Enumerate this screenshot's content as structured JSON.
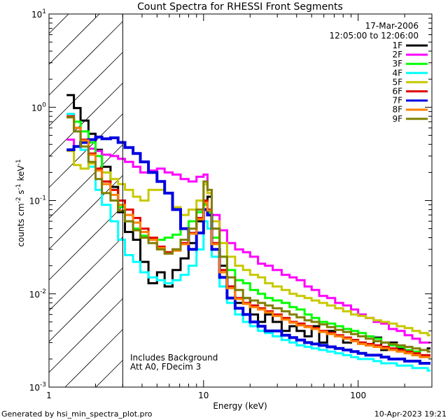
{
  "chart_data": {
    "type": "line",
    "title": "Count Spectra for RHESSI Front Segments",
    "xlabel": "Energy (keV)",
    "ylabel_parts": [
      "counts cm",
      "-2",
      " s",
      "-1",
      " keV",
      "-1"
    ],
    "x_scale": "log",
    "y_scale": "log",
    "xlim": [
      1,
      300
    ],
    "ylim": [
      0.001,
      10
    ],
    "x_tick_labels": [
      {
        "value": 1,
        "label": "1"
      },
      {
        "value": 10,
        "label": "10"
      },
      {
        "value": 100,
        "label": "100"
      }
    ],
    "y_tick_labels": [
      {
        "value": 10,
        "base": "10",
        "exp": "1"
      },
      {
        "value": 1,
        "base": "10",
        "exp": "0"
      },
      {
        "value": 0.1,
        "base": "10",
        "exp": "-1"
      },
      {
        "value": 0.01,
        "base": "10",
        "exp": "-2"
      },
      {
        "value": 0.001,
        "base": "10",
        "exp": "-3"
      }
    ],
    "excluded_region_keV": [
      1,
      3
    ],
    "date": "17-Mar-2006",
    "time_range": "12:05:00 to 12:06:00",
    "notes": [
      "Includes Background",
      "Att A0, FDecim 3"
    ],
    "series": [
      {
        "name": "1F",
        "color": "#000000",
        "width": 3,
        "x": [
          1.3,
          1.45,
          1.6,
          1.8,
          2.0,
          2.2,
          2.5,
          2.8,
          3.1,
          3.5,
          3.9,
          4.4,
          5.0,
          5.6,
          6.3,
          7.1,
          8.0,
          9.0,
          10.0,
          10.6,
          11.3,
          12.7,
          14.2,
          16,
          18,
          20,
          22.5,
          25,
          28,
          32,
          36,
          40,
          45,
          50,
          56,
          63,
          71,
          80,
          90,
          100,
          112,
          126,
          141,
          158,
          178,
          200,
          224,
          251,
          282
        ],
        "y": [
          1.35,
          0.98,
          0.72,
          0.52,
          0.35,
          0.23,
          0.14,
          0.075,
          0.046,
          0.038,
          0.022,
          0.013,
          0.017,
          0.012,
          0.018,
          0.024,
          0.035,
          0.06,
          0.1,
          0.11,
          0.05,
          0.02,
          0.012,
          0.008,
          0.009,
          0.006,
          0.005,
          0.006,
          0.005,
          0.004,
          0.0045,
          0.004,
          0.0035,
          0.0045,
          0.003,
          0.004,
          0.0035,
          0.003,
          0.0032,
          0.003,
          0.0028,
          0.0034,
          0.0025,
          0.003,
          0.0026,
          0.0024,
          0.0022,
          0.0025,
          0.0026
        ]
      },
      {
        "name": "2F",
        "color": "#ff00ff",
        "width": 3,
        "x": [
          1.3,
          1.45,
          1.6,
          1.8,
          2.0,
          2.2,
          2.5,
          2.8,
          3.1,
          3.5,
          3.9,
          4.4,
          5.0,
          5.6,
          6.3,
          7.1,
          8.0,
          9.0,
          10.0,
          10.6,
          11.3,
          12.7,
          14.2,
          16,
          18,
          20,
          22.5,
          25,
          28,
          32,
          36,
          40,
          45,
          50,
          56,
          63,
          71,
          80,
          90,
          100,
          112,
          126,
          141,
          158,
          178,
          200,
          224,
          251,
          282
        ],
        "y": [
          0.45,
          0.38,
          0.35,
          0.36,
          0.34,
          0.31,
          0.3,
          0.28,
          0.26,
          0.23,
          0.2,
          0.21,
          0.22,
          0.2,
          0.19,
          0.17,
          0.16,
          0.18,
          0.19,
          0.12,
          0.07,
          0.048,
          0.035,
          0.03,
          0.028,
          0.025,
          0.021,
          0.02,
          0.018,
          0.016,
          0.015,
          0.014,
          0.012,
          0.011,
          0.0095,
          0.009,
          0.008,
          0.0075,
          0.0068,
          0.006,
          0.0055,
          0.005,
          0.0048,
          0.0042,
          0.004,
          0.0036,
          0.0033,
          0.003,
          0.003
        ]
      },
      {
        "name": "3F",
        "color": "#00ff00",
        "width": 3,
        "x": [
          1.3,
          1.45,
          1.6,
          1.8,
          2.0,
          2.2,
          2.5,
          2.8,
          3.1,
          3.5,
          3.9,
          4.4,
          5.0,
          5.6,
          6.3,
          7.1,
          8.0,
          9.0,
          10.0,
          10.6,
          11.3,
          12.7,
          14.2,
          16,
          18,
          20,
          22.5,
          25,
          28,
          32,
          36,
          40,
          45,
          50,
          56,
          63,
          71,
          80,
          90,
          100,
          112,
          126,
          141,
          158,
          178,
          200,
          224,
          251,
          282
        ],
        "y": [
          0.85,
          0.7,
          0.55,
          0.42,
          0.3,
          0.2,
          0.13,
          0.085,
          0.06,
          0.05,
          0.042,
          0.04,
          0.038,
          0.04,
          0.043,
          0.05,
          0.06,
          0.075,
          0.09,
          0.075,
          0.04,
          0.025,
          0.018,
          0.014,
          0.013,
          0.011,
          0.01,
          0.009,
          0.0085,
          0.008,
          0.0072,
          0.0068,
          0.006,
          0.0055,
          0.005,
          0.0048,
          0.0045,
          0.0042,
          0.004,
          0.0038,
          0.0035,
          0.0033,
          0.003,
          0.0028,
          0.0027,
          0.0025,
          0.0024,
          0.0022,
          0.0021
        ]
      },
      {
        "name": "4F",
        "color": "#00ffff",
        "width": 3,
        "x": [
          1.3,
          1.45,
          1.6,
          1.8,
          2.0,
          2.2,
          2.5,
          2.8,
          3.1,
          3.5,
          3.9,
          4.4,
          5.0,
          5.6,
          6.3,
          7.1,
          8.0,
          9.0,
          10.0,
          10.6,
          11.3,
          12.7,
          14.2,
          16,
          18,
          20,
          22.5,
          25,
          28,
          32,
          36,
          40,
          45,
          50,
          56,
          63,
          71,
          80,
          90,
          100,
          112,
          126,
          141,
          158,
          178,
          200,
          224,
          251,
          282
        ],
        "y": [
          0.85,
          0.55,
          0.35,
          0.23,
          0.13,
          0.09,
          0.06,
          0.038,
          0.026,
          0.022,
          0.017,
          0.015,
          0.014,
          0.013,
          0.014,
          0.016,
          0.02,
          0.03,
          0.06,
          0.05,
          0.025,
          0.012,
          0.008,
          0.006,
          0.005,
          0.0045,
          0.004,
          0.0038,
          0.0035,
          0.0032,
          0.003,
          0.0028,
          0.0027,
          0.0026,
          0.0025,
          0.0024,
          0.0023,
          0.0022,
          0.0021,
          0.002,
          0.002,
          0.0019,
          0.0018,
          0.0018,
          0.0017,
          0.0017,
          0.0016,
          0.0016,
          0.0015
        ]
      },
      {
        "name": "5F",
        "color": "#c8c800",
        "width": 3,
        "x": [
          1.3,
          1.45,
          1.6,
          1.8,
          2.0,
          2.2,
          2.5,
          2.8,
          3.1,
          3.5,
          3.9,
          4.4,
          5.0,
          5.6,
          6.3,
          7.1,
          8.0,
          9.0,
          10.0,
          10.6,
          11.3,
          12.7,
          14.2,
          16,
          18,
          20,
          22.5,
          25,
          28,
          32,
          36,
          40,
          45,
          50,
          56,
          63,
          71,
          80,
          90,
          100,
          112,
          126,
          141,
          158,
          178,
          200,
          224,
          251,
          282
        ],
        "y": [
          0.34,
          0.24,
          0.22,
          0.25,
          0.22,
          0.2,
          0.17,
          0.15,
          0.13,
          0.11,
          0.1,
          0.13,
          0.13,
          0.12,
          0.085,
          0.07,
          0.08,
          0.1,
          0.15,
          0.12,
          0.06,
          0.035,
          0.025,
          0.02,
          0.018,
          0.016,
          0.015,
          0.013,
          0.012,
          0.011,
          0.01,
          0.0095,
          0.009,
          0.0085,
          0.008,
          0.0075,
          0.007,
          0.0065,
          0.006,
          0.0058,
          0.0055,
          0.0052,
          0.005,
          0.0048,
          0.0045,
          0.0043,
          0.004,
          0.0038,
          0.0036
        ]
      },
      {
        "name": "6F",
        "color": "#e00000",
        "width": 3,
        "x": [
          1.3,
          1.45,
          1.6,
          1.8,
          2.0,
          2.2,
          2.5,
          2.8,
          3.1,
          3.5,
          3.9,
          4.4,
          5.0,
          5.6,
          6.3,
          7.1,
          8.0,
          9.0,
          10.0,
          10.6,
          11.3,
          12.7,
          14.2,
          16,
          18,
          20,
          22.5,
          25,
          28,
          32,
          36,
          40,
          45,
          50,
          56,
          63,
          71,
          80,
          90,
          100,
          112,
          126,
          141,
          158,
          178,
          200,
          224,
          251,
          282
        ],
        "y": [
          0.8,
          0.6,
          0.45,
          0.32,
          0.22,
          0.16,
          0.13,
          0.1,
          0.08,
          0.065,
          0.05,
          0.04,
          0.032,
          0.028,
          0.03,
          0.035,
          0.045,
          0.065,
          0.1,
          0.08,
          0.035,
          0.018,
          0.012,
          0.009,
          0.008,
          0.0075,
          0.007,
          0.0065,
          0.006,
          0.0055,
          0.005,
          0.0048,
          0.0045,
          0.0043,
          0.004,
          0.0038,
          0.0036,
          0.0034,
          0.0032,
          0.003,
          0.0029,
          0.0028,
          0.0027,
          0.0026,
          0.0025,
          0.0024,
          0.0023,
          0.0022,
          0.0022
        ]
      },
      {
        "name": "7F",
        "color": "#0000e0",
        "width": 4,
        "x": [
          1.3,
          1.45,
          1.6,
          1.8,
          2.0,
          2.2,
          2.5,
          2.8,
          3.1,
          3.5,
          3.9,
          4.4,
          5.0,
          5.6,
          6.3,
          7.1,
          8.0,
          9.0,
          10.0,
          10.6,
          11.3,
          12.7,
          14.2,
          16,
          18,
          20,
          22.5,
          25,
          28,
          32,
          36,
          40,
          45,
          50,
          56,
          63,
          71,
          80,
          90,
          100,
          112,
          126,
          141,
          158,
          178,
          200,
          224,
          251,
          282
        ],
        "y": [
          0.35,
          0.38,
          0.42,
          0.45,
          0.48,
          0.46,
          0.47,
          0.42,
          0.37,
          0.32,
          0.26,
          0.2,
          0.16,
          0.12,
          0.08,
          0.05,
          0.03,
          0.045,
          0.08,
          0.07,
          0.03,
          0.015,
          0.009,
          0.007,
          0.006,
          0.005,
          0.0045,
          0.004,
          0.004,
          0.0036,
          0.0034,
          0.0032,
          0.003,
          0.0029,
          0.0028,
          0.0027,
          0.0026,
          0.0025,
          0.0024,
          0.0023,
          0.0022,
          0.0022,
          0.0021,
          0.002,
          0.002,
          0.0019,
          0.0019,
          0.0018,
          0.0018
        ]
      },
      {
        "name": "8F",
        "color": "#ff8000",
        "width": 3,
        "x": [
          1.3,
          1.45,
          1.6,
          1.8,
          2.0,
          2.2,
          2.5,
          2.8,
          3.1,
          3.5,
          3.9,
          4.4,
          5.0,
          5.6,
          6.3,
          7.1,
          8.0,
          9.0,
          10.0,
          10.6,
          11.3,
          12.7,
          14.2,
          16,
          18,
          20,
          22.5,
          25,
          28,
          32,
          36,
          40,
          45,
          50,
          56,
          63,
          71,
          80,
          90,
          100,
          112,
          126,
          141,
          158,
          178,
          200,
          224,
          251,
          282
        ],
        "y": [
          0.78,
          0.6,
          0.44,
          0.31,
          0.21,
          0.15,
          0.115,
          0.09,
          0.07,
          0.058,
          0.046,
          0.038,
          0.031,
          0.027,
          0.029,
          0.034,
          0.044,
          0.063,
          0.095,
          0.078,
          0.034,
          0.017,
          0.0115,
          0.0088,
          0.0078,
          0.0072,
          0.0068,
          0.0063,
          0.0058,
          0.0053,
          0.0049,
          0.0046,
          0.0044,
          0.0042,
          0.0039,
          0.0037,
          0.0035,
          0.0033,
          0.0031,
          0.0029,
          0.0028,
          0.0027,
          0.0026,
          0.0025,
          0.0024,
          0.0023,
          0.0022,
          0.0021,
          0.0021
        ]
      },
      {
        "name": "9F",
        "color": "#808000",
        "width": 3,
        "x": [
          1.3,
          1.45,
          1.6,
          1.8,
          2.0,
          2.2,
          2.5,
          2.8,
          3.1,
          3.5,
          3.9,
          4.4,
          5.0,
          5.6,
          6.3,
          7.1,
          8.0,
          9.0,
          10.0,
          10.6,
          11.3,
          12.7,
          14.2,
          16,
          18,
          20,
          22.5,
          25,
          28,
          32,
          36,
          40,
          45,
          50,
          56,
          63,
          71,
          80,
          90,
          100,
          112,
          126,
          141,
          158,
          178,
          200,
          224,
          251,
          282
        ],
        "y": [
          0.78,
          0.55,
          0.38,
          0.26,
          0.17,
          0.12,
          0.1,
          0.078,
          0.06,
          0.048,
          0.04,
          0.035,
          0.03,
          0.027,
          0.03,
          0.038,
          0.05,
          0.08,
          0.16,
          0.13,
          0.05,
          0.025,
          0.015,
          0.011,
          0.009,
          0.0085,
          0.008,
          0.0075,
          0.007,
          0.0065,
          0.006,
          0.0056,
          0.0052,
          0.005,
          0.0047,
          0.0044,
          0.0041,
          0.0039,
          0.0037,
          0.0035,
          0.0033,
          0.0031,
          0.003,
          0.0029,
          0.0028,
          0.0027,
          0.0026,
          0.0025,
          0.0024
        ]
      }
    ]
  },
  "footer": {
    "left": "Generated by hsi_min_spectra_plot.pro",
    "right": "10-Apr-2023 19:21"
  }
}
